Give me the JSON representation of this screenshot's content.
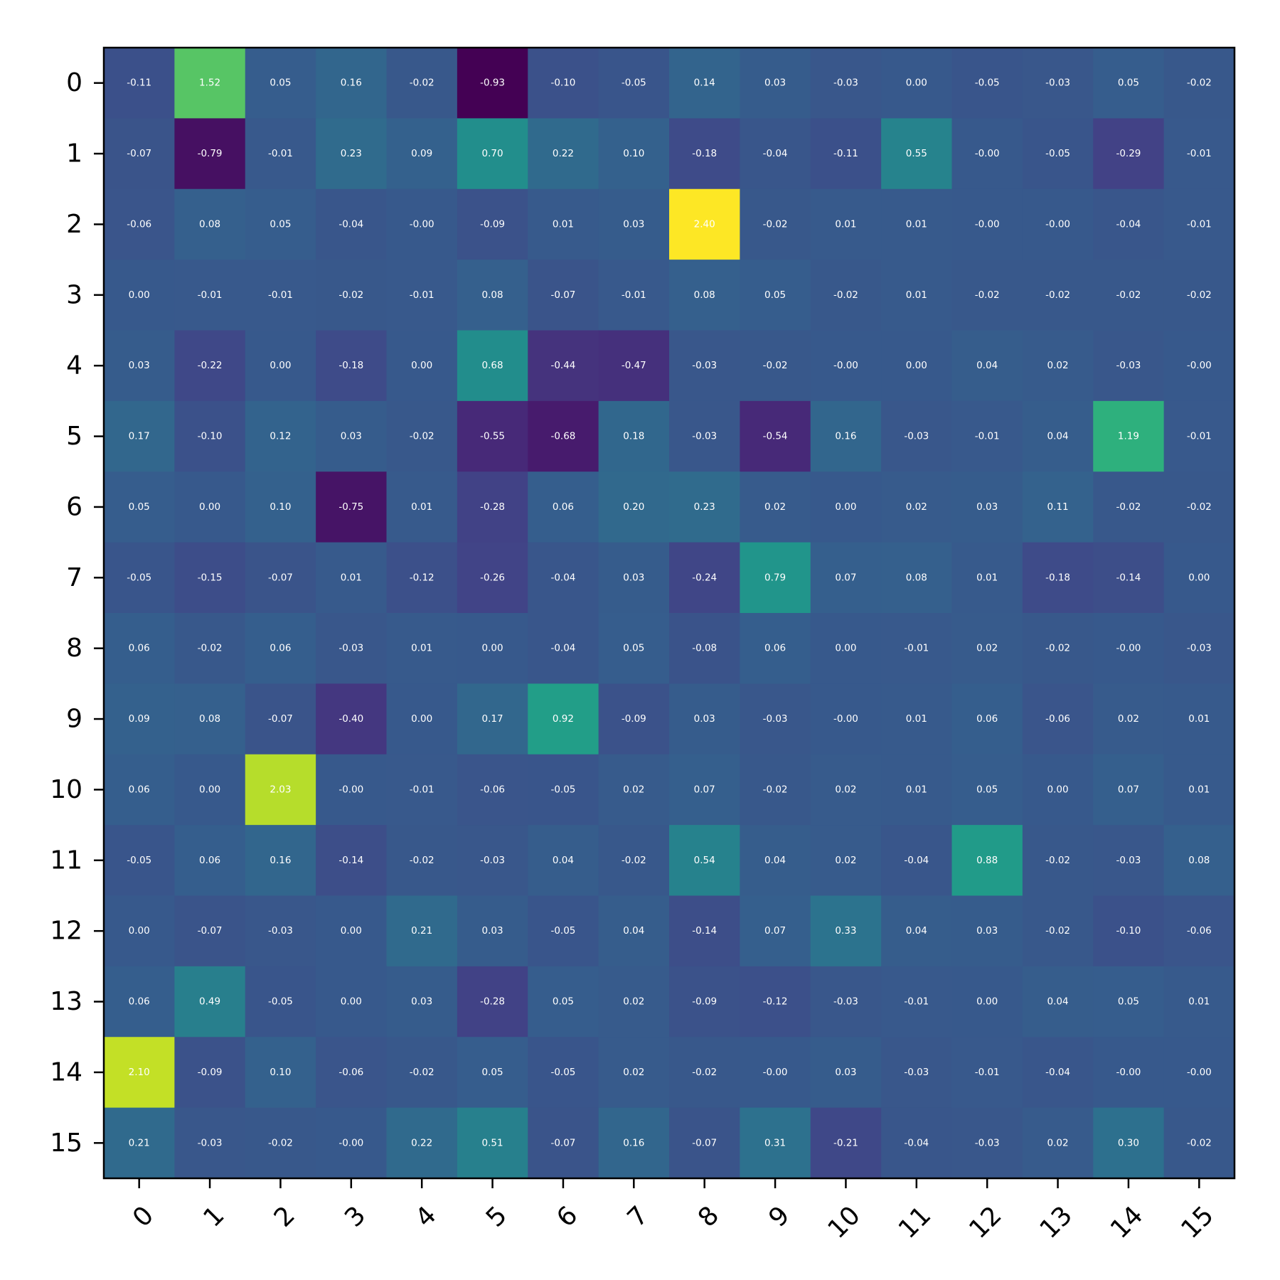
{
  "chart_data": {
    "type": "heatmap",
    "colormap": "viridis",
    "vmin": -0.93,
    "vmax": 2.4,
    "title": "",
    "xlabel": "",
    "ylabel": "",
    "x_ticks": [
      "0",
      "1",
      "2",
      "3",
      "4",
      "5",
      "6",
      "7",
      "8",
      "9",
      "10",
      "11",
      "12",
      "13",
      "14",
      "15"
    ],
    "y_ticks": [
      "0",
      "1",
      "2",
      "3",
      "4",
      "5",
      "6",
      "7",
      "8",
      "9",
      "10",
      "11",
      "12",
      "13",
      "14",
      "15"
    ],
    "x_tick_rotation": "45",
    "values": [
      [
        -0.11,
        1.52,
        0.05,
        0.16,
        -0.02,
        -0.93,
        -0.1,
        -0.05,
        0.14,
        0.03,
        -0.03,
        0.0,
        -0.05,
        -0.03,
        0.05,
        -0.02
      ],
      [
        -0.07,
        -0.79,
        -0.01,
        0.23,
        0.09,
        0.7,
        0.22,
        0.1,
        -0.18,
        -0.04,
        -0.11,
        0.55,
        -0.0,
        -0.05,
        -0.29,
        -0.01
      ],
      [
        -0.06,
        0.08,
        0.05,
        -0.04,
        -0.0,
        -0.09,
        0.01,
        0.03,
        2.4,
        -0.02,
        0.01,
        0.01,
        -0.0,
        -0.0,
        -0.04,
        -0.01
      ],
      [
        0.0,
        -0.01,
        -0.01,
        -0.02,
        -0.01,
        0.08,
        -0.07,
        -0.01,
        0.08,
        0.05,
        -0.02,
        0.01,
        -0.02,
        -0.02,
        -0.02,
        -0.02
      ],
      [
        0.03,
        -0.22,
        0.0,
        -0.18,
        0.0,
        0.68,
        -0.44,
        -0.47,
        -0.03,
        -0.02,
        -0.0,
        0.0,
        0.04,
        0.02,
        -0.03,
        -0.0
      ],
      [
        0.17,
        -0.1,
        0.12,
        0.03,
        -0.02,
        -0.55,
        -0.68,
        0.18,
        -0.03,
        -0.54,
        0.16,
        -0.03,
        -0.01,
        0.04,
        1.19,
        -0.01
      ],
      [
        0.05,
        0.0,
        0.1,
        -0.75,
        0.01,
        -0.28,
        0.06,
        0.2,
        0.23,
        0.02,
        0.0,
        0.02,
        0.03,
        0.11,
        -0.02,
        -0.02
      ],
      [
        -0.05,
        -0.15,
        -0.07,
        0.01,
        -0.12,
        -0.26,
        -0.04,
        0.03,
        -0.24,
        0.79,
        0.07,
        0.08,
        0.01,
        -0.18,
        -0.14,
        0.0
      ],
      [
        0.06,
        -0.02,
        0.06,
        -0.03,
        0.01,
        0.0,
        -0.04,
        0.05,
        -0.08,
        0.06,
        0.0,
        -0.01,
        0.02,
        -0.02,
        -0.0,
        -0.03
      ],
      [
        0.09,
        0.08,
        -0.07,
        -0.4,
        0.0,
        0.17,
        0.92,
        -0.09,
        0.03,
        -0.03,
        -0.0,
        0.01,
        0.06,
        -0.06,
        0.02,
        0.01
      ],
      [
        0.06,
        0.0,
        2.03,
        -0.0,
        -0.01,
        -0.06,
        -0.05,
        0.02,
        0.07,
        -0.02,
        0.02,
        0.01,
        0.05,
        0.0,
        0.07,
        0.01
      ],
      [
        -0.05,
        0.06,
        0.16,
        -0.14,
        -0.02,
        -0.03,
        0.04,
        -0.02,
        0.54,
        0.04,
        0.02,
        -0.04,
        0.88,
        -0.02,
        -0.03,
        0.08
      ],
      [
        0.0,
        -0.07,
        -0.03,
        0.0,
        0.21,
        0.03,
        -0.05,
        0.04,
        -0.14,
        0.07,
        0.33,
        0.04,
        0.03,
        -0.02,
        -0.1,
        -0.06
      ],
      [
        0.06,
        0.49,
        -0.05,
        0.0,
        0.03,
        -0.28,
        0.05,
        0.02,
        -0.09,
        -0.12,
        -0.03,
        -0.01,
        0.0,
        0.04,
        0.05,
        0.01
      ],
      [
        2.1,
        -0.09,
        0.1,
        -0.06,
        -0.02,
        0.05,
        -0.05,
        0.02,
        -0.02,
        -0.0,
        0.03,
        -0.03,
        -0.01,
        -0.04,
        -0.0,
        -0.0
      ],
      [
        0.21,
        -0.03,
        -0.02,
        -0.0,
        0.22,
        0.51,
        -0.07,
        0.16,
        -0.07,
        0.31,
        -0.21,
        -0.04,
        -0.03,
        0.02,
        0.3,
        -0.02
      ]
    ]
  }
}
